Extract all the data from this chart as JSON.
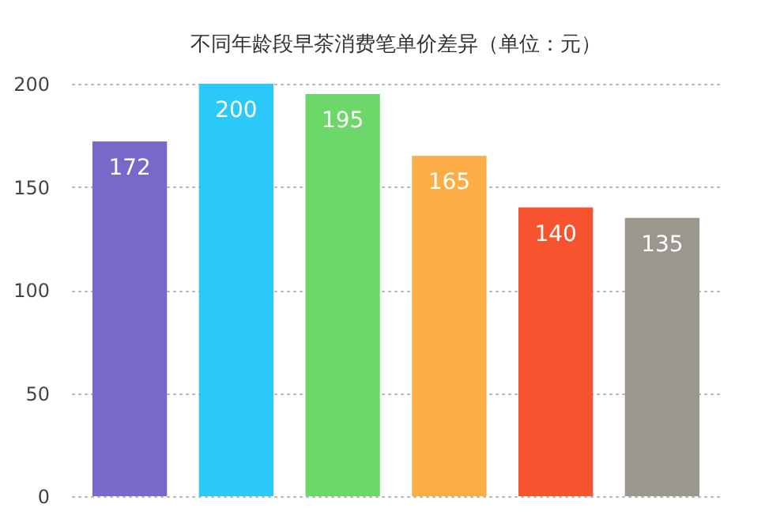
{
  "chart_data": {
    "type": "bar",
    "title": "不同年龄段早茶消费笔单价差异（单位：元）",
    "categories": [
      null,
      null,
      null,
      null,
      null,
      null
    ],
    "values": [
      172,
      200,
      195,
      165,
      140,
      135
    ],
    "colors": [
      "#7669c9",
      "#2bc9f7",
      "#6dd86a",
      "#fbae45",
      "#f5542f",
      "#9b968e"
    ],
    "ylim": [
      0,
      200
    ],
    "yticks": [
      0,
      50,
      100,
      150,
      200
    ],
    "grid": "y",
    "data_labels": true,
    "tick_labels": "y"
  }
}
